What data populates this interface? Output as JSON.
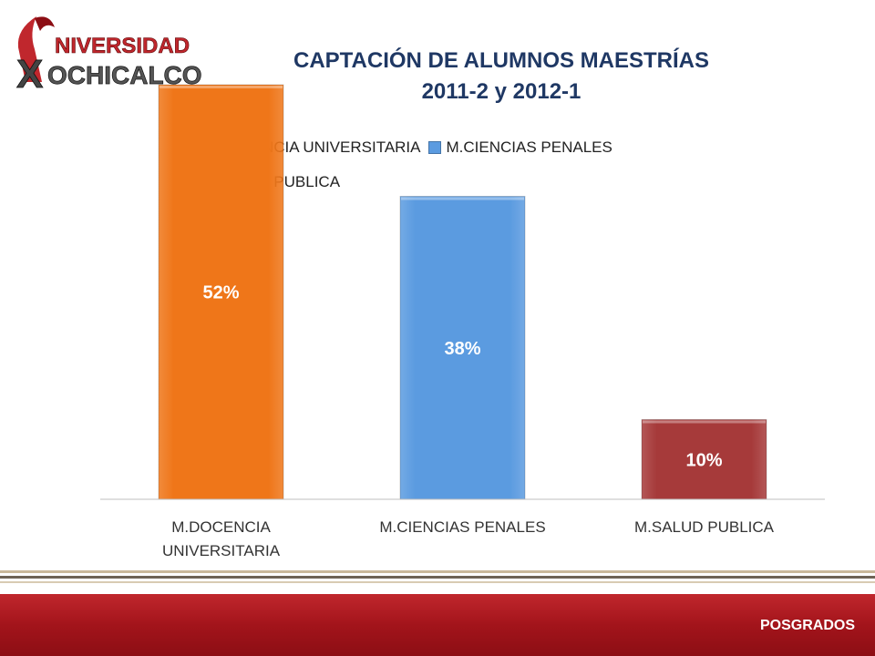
{
  "logo": {
    "line1": "NIVERSIDAD",
    "line2": "OCHICALCO",
    "initial": "X"
  },
  "title": {
    "line1": "CAPTACIÓN DE ALUMNOS MAESTRÍAS",
    "line2": "2011-2 y 2012-1"
  },
  "footer": {
    "label": "POSGRADOS"
  },
  "colors": {
    "accent": "#c0272d",
    "title": "#1f3864"
  },
  "chart_data": {
    "type": "bar",
    "categories": [
      "M.DOCENCIA UNIVERSITARIA",
      "M.CIENCIAS PENALES",
      "M.SALUD PUBLICA"
    ],
    "category_labels": [
      [
        "M.DOCENCIA",
        "UNIVERSITARIA"
      ],
      [
        "M.CIENCIAS PENALES"
      ],
      [
        "M.SALUD PUBLICA"
      ]
    ],
    "values": [
      52,
      38,
      10
    ],
    "data_labels": [
      "52%",
      "38%",
      "10%"
    ],
    "colors": [
      "#ef7619",
      "#5b9be0",
      "#a63a3a"
    ],
    "legend": [
      "M.DOCENCIA UNIVERSITARIA",
      "M.CIENCIAS PENALES",
      "M.SALUD PUBLICA"
    ],
    "legend_position": "top",
    "ylim": [
      0,
      60
    ],
    "grid": false
  }
}
